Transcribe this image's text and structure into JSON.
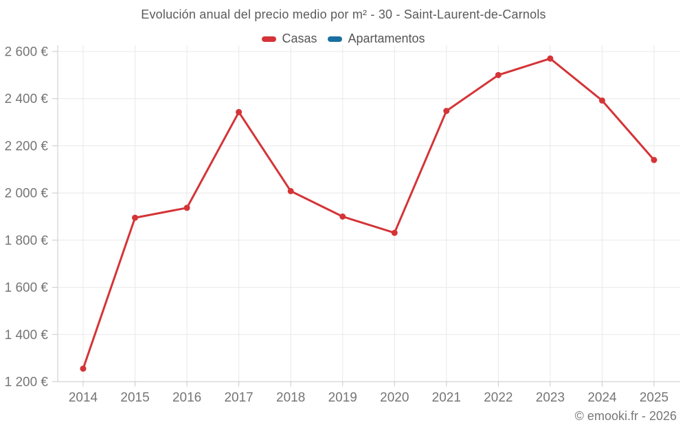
{
  "attribution": "© emooki.fr - 2026",
  "colors": {
    "grid": "#e8e8e8",
    "axis": "#c9c9c9",
    "tick_label": "#757575",
    "title": "#5a5a5a",
    "legend_text": "#555555",
    "attribution": "#777777",
    "casas": "#d43437",
    "apartamentos": "#1a6fa0"
  },
  "chart_data": {
    "type": "line",
    "title": "Evolución anual del precio medio por m² - 30 - Saint-Laurent-de-Carnols",
    "categories": [
      "2014",
      "2015",
      "2016",
      "2017",
      "2018",
      "2019",
      "2020",
      "2021",
      "2022",
      "2023",
      "2024",
      "2025"
    ],
    "series": [
      {
        "name": "Casas",
        "color": "#d43437",
        "values": [
          1255,
          1895,
          1937,
          2343,
          2008,
          1900,
          1831,
          2348,
          2500,
          2570,
          2392,
          2140
        ]
      },
      {
        "name": "Apartamentos",
        "color": "#1a6fa0",
        "values": []
      }
    ],
    "xlabel": "",
    "ylabel": "",
    "ylim": [
      1200,
      2600
    ],
    "ytick_step": 200,
    "ytick_labels": [
      "1 200 €",
      "1 400 €",
      "1 600 €",
      "1 800 €",
      "2 000 €",
      "2 200 €",
      "2 400 €",
      "2 600 €"
    ],
    "grid": true,
    "legend_position": "top",
    "marker": "circle"
  }
}
